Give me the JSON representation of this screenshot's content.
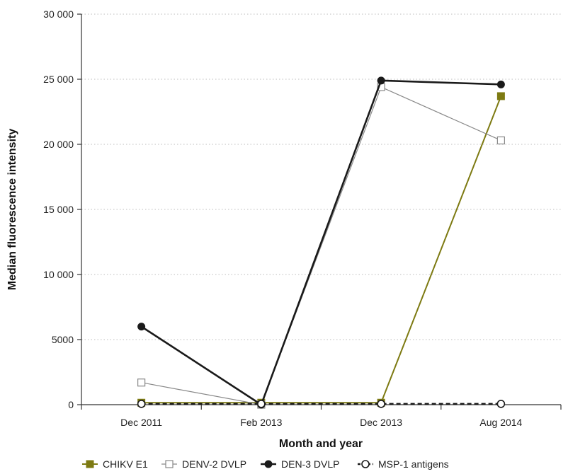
{
  "chart_data": {
    "type": "line",
    "title": "",
    "xlabel": "Month and year",
    "ylabel": "Median fluorescence intensity",
    "categories": [
      "Dec 2011",
      "Feb 2013",
      "Dec 2013",
      "Aug 2014"
    ],
    "ylim": [
      0,
      30000
    ],
    "yticks": [
      0,
      5000,
      10000,
      15000,
      20000,
      25000,
      30000
    ],
    "ytick_labels": [
      "0",
      "5000",
      "10 000",
      "15 000",
      "20 000",
      "25 000",
      "30 000"
    ],
    "grid": true,
    "legend_position": "bottom",
    "series": [
      {
        "name": "CHIKV E1",
        "values": [
          150,
          150,
          150,
          23700
        ],
        "color": "#7d7a12",
        "marker": "filled-square",
        "line": "solid"
      },
      {
        "name": "DENV-2 DVLP",
        "values": [
          1700,
          0,
          24400,
          20300
        ],
        "color": "#888888",
        "marker": "open-square",
        "line": "solid-thin"
      },
      {
        "name": "DEN-3 DVLP",
        "values": [
          6000,
          0,
          24900,
          24600
        ],
        "color": "#1a1a1a",
        "marker": "filled-circle",
        "line": "solid-thick"
      },
      {
        "name": "MSP-1 antigens",
        "values": [
          60,
          60,
          60,
          60
        ],
        "color": "#1a1a1a",
        "marker": "open-circle",
        "line": "dashed"
      }
    ]
  }
}
